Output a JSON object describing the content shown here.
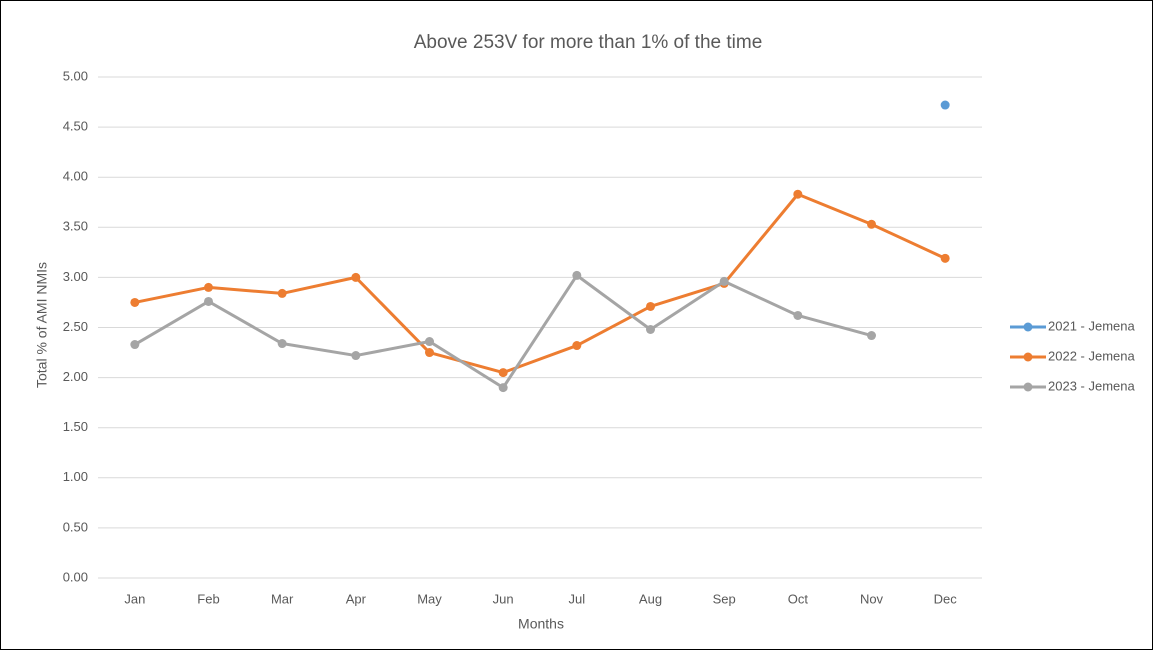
{
  "chart_data": {
    "type": "line",
    "title": "Above 253V for more than 1% of the time",
    "x_label": "Months",
    "y_label": "Total % of AMI NMIs",
    "categories": [
      "Jan",
      "Feb",
      "Mar",
      "Apr",
      "May",
      "Jun",
      "Jul",
      "Aug",
      "Sep",
      "Oct",
      "Nov",
      "Dec"
    ],
    "series": [
      {
        "name": "2021 - Jemena",
        "color": "#5b9bd5",
        "values": [
          null,
          null,
          null,
          null,
          null,
          null,
          null,
          null,
          null,
          null,
          null,
          4.72
        ]
      },
      {
        "name": "2022 - Jemena",
        "color": "#ed7d31",
        "values": [
          2.75,
          2.9,
          2.84,
          3.0,
          2.25,
          2.05,
          2.32,
          2.71,
          2.94,
          3.83,
          3.53,
          3.19
        ]
      },
      {
        "name": "2023 - Jemena",
        "color": "#a5a5a5",
        "values": [
          2.33,
          2.76,
          2.34,
          2.22,
          2.36,
          1.9,
          3.02,
          2.48,
          2.96,
          2.62,
          2.42,
          null
        ]
      }
    ],
    "ylim": [
      0,
      5
    ],
    "yticks": [
      {
        "value": 0,
        "label": "0.00"
      },
      {
        "value": 0.5,
        "label": "0.50"
      },
      {
        "value": 1,
        "label": "1.00"
      },
      {
        "value": 1.5,
        "label": "1.50"
      },
      {
        "value": 2,
        "label": "2.00"
      },
      {
        "value": 2.5,
        "label": "2.50"
      },
      {
        "value": 3,
        "label": "3.00"
      },
      {
        "value": 3.5,
        "label": "3.50"
      },
      {
        "value": 4,
        "label": "4.00"
      },
      {
        "value": 4.5,
        "label": "4.50"
      },
      {
        "value": 5,
        "label": "5.00"
      }
    ],
    "grid": true,
    "legend": "right"
  }
}
